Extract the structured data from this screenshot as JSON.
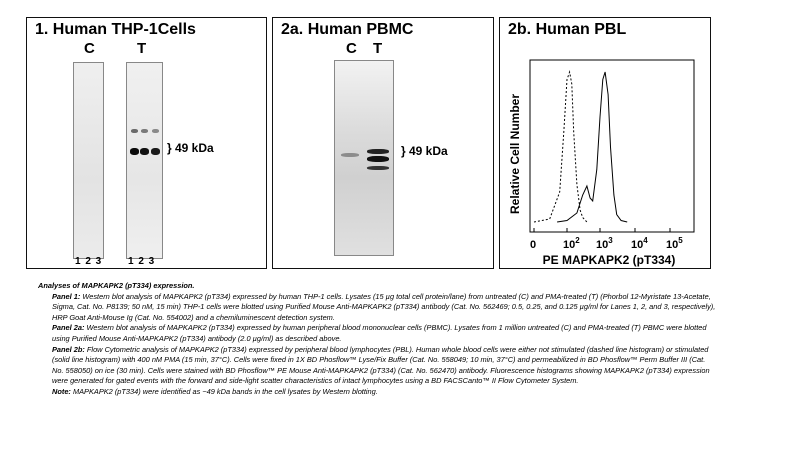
{
  "panel1": {
    "title": "1. Human THP-1Cells",
    "lane_c": "C",
    "lane_t": "T",
    "lane_numbers_c": "1 2 3",
    "lane_numbers_t": "1 2 3",
    "kda_label": "} 49 kDa"
  },
  "panel2a": {
    "title": "2a. Human PBMC",
    "lane_c": "C",
    "lane_t": "T",
    "kda_label": "} 49 kDa"
  },
  "panel2b": {
    "title": "2b.  Human PBL",
    "ylabel": "Relative Cell Number",
    "xlabel": "PE MAPKAPK2 (pT334)",
    "ticks": [
      {
        "base": "0",
        "exp": ""
      },
      {
        "base": "10",
        "exp": "2"
      },
      {
        "base": "10",
        "exp": "3"
      },
      {
        "base": "10",
        "exp": "4"
      },
      {
        "base": "10",
        "exp": "5"
      }
    ]
  },
  "chart_data": {
    "type": "area",
    "title": "2b.  Human PBL",
    "xlabel": "PE MAPKAPK2 (pT334)",
    "ylabel": "Relative Cell Number",
    "x_scale": "log",
    "x_tick_labels": [
      "0",
      "10^2",
      "10^3",
      "10^4",
      "10^5"
    ],
    "series": [
      {
        "line_style": "dashed",
        "x": [
          10,
          30,
          60,
          80,
          100,
          120,
          140,
          160,
          200,
          250,
          300,
          400
        ],
        "y": [
          0,
          0.02,
          0.2,
          0.6,
          0.95,
          1.0,
          0.92,
          0.6,
          0.25,
          0.08,
          0.03,
          0
        ]
      },
      {
        "line_style": "solid",
        "x": [
          50,
          100,
          200,
          300,
          400,
          500,
          600,
          800,
          1000,
          1200,
          1400,
          1700,
          2000,
          2500,
          3000,
          4000,
          6000
        ],
        "y": [
          0,
          0.01,
          0.06,
          0.18,
          0.24,
          0.16,
          0.14,
          0.35,
          0.7,
          0.95,
          1.0,
          0.85,
          0.5,
          0.18,
          0.05,
          0.01,
          0
        ]
      }
    ]
  },
  "caption": {
    "heading": "Analyses of MAPKAPK2 (pT334) expression.",
    "p1_label": "Panel 1:",
    "p1_text": " Western blot analysis of MAPKAPK2 (pT334) expressed by human THP-1 cells. Lysates (15 µg total cell protein/lane) from untreated (C) and PMA-treated (T) (Phorbol 12-Myristate 13-Acetate, Sigma, Cat. No. P8139; 50 nM, 15 min) THP-1 cells were blotted using Purified Mouse Anti-MAPKAPK2 (pT334) antibody (Cat. No. 562469; 0.5, 0.25, and 0.125 µg/ml for Lanes 1, 2, and 3, respectively), HRP Goat Anti-Mouse Ig (Cat. No. 554002) and a chemiluminescent detection system.",
    "p2a_label": "Panel 2a:",
    "p2a_text": " Western blot analysis of MAPKAPK2 (pT334)  expressed by human peripheral blood mononuclear cells (PBMC). Lysates from 1 million untreated (C) and PMA-treated (T) PBMC were blotted using Purified Mouse Anti-MAPKAPK2 (pT334) antibody (2.0 µg/ml) as described above.",
    "p2b_label": "Panel 2b:",
    "p2b_text": " Flow Cytometric analysis of MAPKAPK2 (pT334) expressed by peripheral blood lymphocytes (PBL). Human whole blood cells were either not stimulated (dashed line histogram) or stimulated (solid line histogram) with 400 nM PMA (15 min, 37°C). Cells were fixed in 1X BD Phosflow™ Lyse/Fix Buffer (Cat. No. 558049; 10 min, 37°C) and permeabilized in BD Phosflow™ Perm Buffer III (Cat. No. 558050) on ice (30 min). Cells were stained with BD Phosflow™ PE Mouse Anti-MAPKAPK2 (pT334) (Cat. No. 562470) antibody. Fluorescence histograms showing MAPKAPK2 (pT334) expression were generated for gated events with the forward and side-light scatter characteristics of intact lymphocytes using a BD FACSCanto™ II Flow Cytometer System.",
    "note_label": "Note:",
    "note_text": " MAPKAPK2 (pT334) were identified as ~49  kDa bands in the cell lysates by Western blotting."
  }
}
